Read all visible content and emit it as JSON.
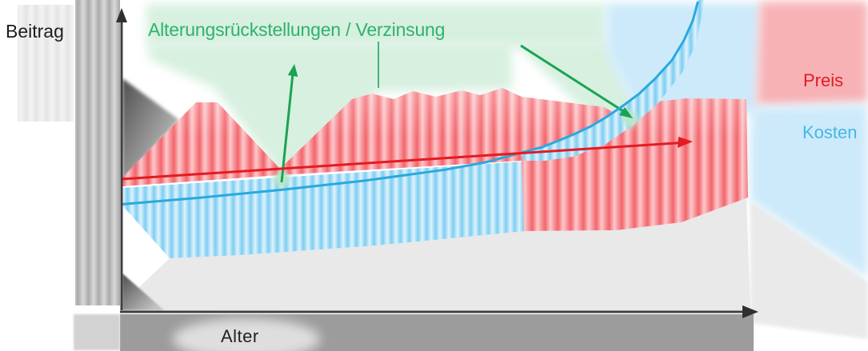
{
  "labels": {
    "y_axis": "Beitrag",
    "x_axis": "Alter",
    "annotation": "Alterungsrückstellungen / Verzinsung",
    "price": "Preis",
    "costs": "Kosten"
  },
  "colors": {
    "price_red": "#e21b22",
    "price_area_red": "#f4747c",
    "costs_blue": "#2aa9dd",
    "costs_area_blue": "#7ecdf1",
    "annotation_green": "#2fb26c",
    "arrow_green": "#1ba351",
    "axis_gray": "#3f3f3f"
  },
  "chart_data": {
    "type": "line",
    "title": "",
    "xlabel": "Alter",
    "ylabel": "Beitrag",
    "x_ticks": [],
    "y_ticks": [],
    "grid": false,
    "legend_position": "right-outside",
    "x_unit": "age (no numeric ticks shown)",
    "series": [
      {
        "name": "Preis",
        "color": "#e21b22",
        "style": "straight rising arrow line, shaded red band",
        "x": [
          18,
          88
        ],
        "values": [
          100,
          135
        ]
      },
      {
        "name": "Kosten",
        "color": "#2aa9dd",
        "style": "exponentially rising curve, shaded blue band",
        "x": [
          18,
          28,
          38,
          48,
          58,
          63,
          67,
          70,
          72,
          74,
          76,
          78,
          80,
          82,
          84,
          86,
          87.5,
          88.6,
          89.2
        ],
        "values": [
          76,
          82.5,
          90,
          98.5,
          109,
          116,
          124.3,
          130.5,
          136.5,
          143,
          150.2,
          159.5,
          170,
          181.5,
          196,
          213,
          232,
          251,
          268
        ]
      }
    ],
    "annotations": [
      {
        "text": "Alterungsrückstellungen / Verzinsung",
        "color": "#2fb26c",
        "arrows": [
          {
            "description": "green arrow pointing up from the dip between the red areas (premium surplus of young insured)"
          },
          {
            "description": "green arrow pointing down-right to where the Kosten curve crosses the Preis line"
          },
          {
            "description": "short vertical green leader line from the annotation down to the red area"
          }
        ]
      }
    ],
    "crossing_point": {
      "x": 67,
      "value": 124.3,
      "meaning": "Kosten exceed Preis beyond this age"
    }
  }
}
